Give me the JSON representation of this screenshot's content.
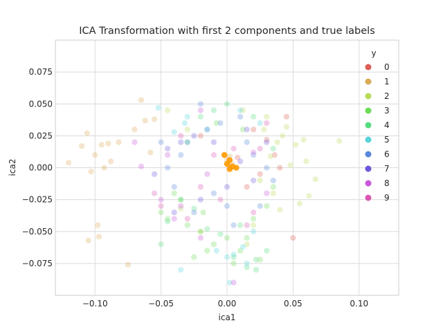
{
  "chart_data": {
    "type": "scatter",
    "title": "ICA Transformation with first 2 components and true labels",
    "xlabel": "ica1",
    "ylabel": "ica2",
    "xlim": [
      -0.13,
      0.13
    ],
    "ylim": [
      -0.1,
      0.1
    ],
    "xticks": [
      -0.1,
      -0.05,
      0.0,
      0.05,
      0.1
    ],
    "xtick_labels": [
      "−0.10",
      "−0.05",
      "0.00",
      "0.05",
      "0.10"
    ],
    "yticks": [
      -0.075,
      -0.05,
      -0.025,
      0.0,
      0.025,
      0.05,
      0.075
    ],
    "ytick_labels": [
      "−0.075",
      "−0.050",
      "−0.025",
      "0.000",
      "0.025",
      "0.050",
      "0.075"
    ],
    "grid": true,
    "marker_alpha": 0.3,
    "legend": {
      "title": "y",
      "placement": "upper-right",
      "entries": [
        {
          "label": "0",
          "color": "#db5f57"
        },
        {
          "label": "1",
          "color": "#dbaa57"
        },
        {
          "label": "2",
          "color": "#b8db57"
        },
        {
          "label": "3",
          "color": "#6ddb57"
        },
        {
          "label": "4",
          "color": "#57db80"
        },
        {
          "label": "5",
          "color": "#57d3db"
        },
        {
          "label": "6",
          "color": "#5788db"
        },
        {
          "label": "7",
          "color": "#6d57db"
        },
        {
          "label": "8",
          "color": "#c957db"
        },
        {
          "label": "9",
          "color": "#db57b2"
        }
      ]
    },
    "series": [
      {
        "name": "0",
        "x": [
          0.02,
          0.045,
          0.036,
          0.025,
          0.04,
          -0.02,
          0.05,
          0.008,
          0.03,
          0.015
        ],
        "y": [
          0.03,
          0.04,
          0.01,
          -0.005,
          0.0,
          0.025,
          -0.055,
          0.008,
          0.022,
          -0.015
        ]
      },
      {
        "name": "1",
        "x": [
          -0.12,
          -0.11,
          -0.1,
          -0.103,
          -0.095,
          -0.098,
          -0.075,
          -0.082,
          -0.106,
          -0.093,
          -0.105,
          -0.097,
          -0.088,
          -0.09,
          -0.065,
          -0.062,
          -0.07,
          -0.055,
          -0.058,
          0.0,
          0.002,
          0.004
        ],
        "y": [
          0.004,
          0.017,
          0.01,
          -0.003,
          0.018,
          -0.045,
          -0.076,
          0.02,
          0.027,
          0.0,
          -0.057,
          -0.054,
          0.005,
          0.019,
          0.053,
          0.037,
          0.03,
          0.038,
          0.012,
          0.006,
          0.009,
          0.003
        ]
      },
      {
        "name": "2",
        "x": [
          0.085,
          0.067,
          0.062,
          0.055,
          0.045,
          0.042,
          0.052,
          0.038,
          0.033,
          0.028,
          0.025,
          0.035,
          0.048,
          0.06,
          0.058,
          0.04,
          0.03,
          -0.03,
          -0.035,
          -0.02,
          -0.045,
          0.015,
          0.012,
          0.02
        ],
        "y": [
          0.021,
          -0.009,
          -0.022,
          -0.028,
          0.032,
          0.025,
          0.018,
          0.02,
          0.009,
          0.03,
          -0.01,
          -0.02,
          0.002,
          0.005,
          0.022,
          -0.033,
          0.04,
          0.03,
          -0.032,
          -0.05,
          0.045,
          -0.06,
          0.045,
          -0.045
        ]
      },
      {
        "name": "3",
        "x": [
          -0.05,
          -0.045,
          -0.04,
          -0.03,
          -0.02,
          -0.01,
          0.0,
          0.01,
          0.02,
          0.03,
          0.025,
          -0.025,
          -0.015,
          0.005,
          0.015,
          -0.035,
          0.035,
          -0.008,
          0.012,
          -0.018
        ],
        "y": [
          -0.035,
          -0.04,
          -0.02,
          -0.045,
          -0.05,
          -0.06,
          -0.055,
          -0.065,
          -0.04,
          -0.03,
          -0.072,
          -0.07,
          -0.065,
          -0.075,
          -0.055,
          -0.025,
          -0.015,
          0.035,
          0.03,
          -0.035
        ]
      },
      {
        "name": "4",
        "x": [
          -0.05,
          -0.045,
          -0.035,
          -0.025,
          -0.015,
          -0.005,
          0.005,
          0.015,
          0.022,
          0.03,
          0.022,
          0.01,
          -0.02,
          -0.01,
          0.0,
          0.02,
          -0.03,
          0.035
        ],
        "y": [
          -0.06,
          -0.042,
          -0.025,
          -0.032,
          -0.048,
          -0.052,
          -0.07,
          -0.078,
          -0.08,
          -0.065,
          -0.072,
          -0.045,
          0.04,
          0.045,
          0.05,
          0.04,
          0.02,
          0.015
        ]
      },
      {
        "name": "5",
        "x": [
          -0.052,
          -0.035,
          -0.032,
          -0.03,
          -0.008,
          0.0,
          0.005,
          0.012,
          0.01,
          0.015,
          0.002,
          -0.015,
          0.025,
          -0.04,
          0.02
        ],
        "y": [
          0.047,
          -0.08,
          0.035,
          0.04,
          -0.065,
          -0.07,
          -0.068,
          -0.062,
          0.045,
          -0.075,
          -0.09,
          0.03,
          0.035,
          0.028,
          -0.05
        ]
      },
      {
        "name": "6",
        "x": [
          -0.05,
          -0.045,
          -0.04,
          -0.03,
          -0.02,
          -0.015,
          -0.01,
          0.0,
          0.01,
          0.02,
          0.03,
          0.035,
          -0.025,
          0.025,
          -0.035,
          0.015,
          -0.005,
          0.005
        ],
        "y": [
          0.02,
          0.0,
          -0.015,
          0.02,
          0.05,
          0.03,
          -0.02,
          -0.03,
          0.04,
          0.01,
          0.0,
          -0.01,
          -0.035,
          -0.03,
          0.01,
          0.02,
          0.035,
          -0.045
        ]
      },
      {
        "name": "7",
        "x": [
          -0.055,
          -0.045,
          -0.035,
          -0.02,
          -0.01,
          0.0,
          0.01,
          0.02,
          -0.025,
          0.015,
          -0.04,
          0.03
        ],
        "y": [
          -0.005,
          0.015,
          0.02,
          -0.025,
          0.02,
          -0.015,
          0.005,
          -0.01,
          0.025,
          0.03,
          -0.035,
          0.02
        ]
      },
      {
        "name": "8",
        "x": [
          -0.07,
          -0.065,
          -0.05,
          -0.045,
          -0.035,
          -0.02,
          -0.02,
          0.005,
          0.02,
          -0.015,
          -0.04,
          0.03
        ],
        "y": [
          0.02,
          0.001,
          -0.025,
          0.01,
          -0.03,
          -0.055,
          0.045,
          -0.09,
          0.012,
          -0.005,
          -0.04,
          -0.02
        ]
      },
      {
        "name": "9",
        "x": [
          -0.055,
          -0.05,
          -0.03,
          -0.02,
          -0.01,
          0.005,
          0.015,
          0.02,
          0.025,
          -0.005,
          -0.035,
          0.03
        ],
        "y": [
          -0.02,
          -0.03,
          -0.04,
          -0.015,
          0.01,
          0.015,
          -0.045,
          -0.035,
          0.015,
          -0.025,
          0.025,
          0.035
        ]
      }
    ],
    "highlight_marker": {
      "color": "#ff9900",
      "x": [
        -0.002,
        0.002,
        0.004,
        0.002,
        0.007,
        0.0
      ],
      "y": [
        0.01,
        0.006,
        0.001,
        -0.001,
        0.0,
        0.003
      ]
    }
  }
}
